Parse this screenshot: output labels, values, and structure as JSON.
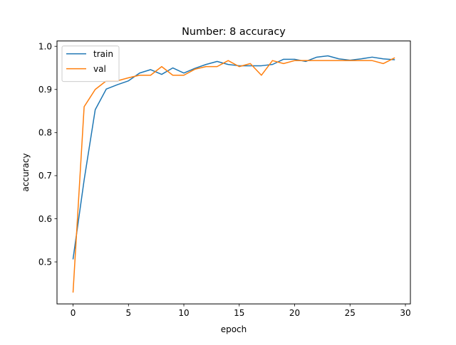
{
  "chart_data": {
    "type": "line",
    "title": "Number: 8 accuracy",
    "xlabel": "epoch",
    "ylabel": "accuracy",
    "xlim": [
      -1.45,
      30.45
    ],
    "ylim": [
      0.4025,
      1.0125
    ],
    "xticks": [
      0,
      5,
      10,
      15,
      20,
      25,
      30
    ],
    "yticks": [
      0.5,
      0.6,
      0.7,
      0.8,
      0.9,
      1.0
    ],
    "xtick_labels": [
      "0",
      "5",
      "10",
      "15",
      "20",
      "25",
      "30"
    ],
    "ytick_labels": [
      "0.5",
      "0.6",
      "0.7",
      "0.8",
      "0.9",
      "1.0"
    ],
    "grid": false,
    "legend_position": "top-left",
    "x": [
      0,
      1,
      2,
      3,
      4,
      5,
      6,
      7,
      8,
      9,
      10,
      11,
      12,
      13,
      14,
      15,
      16,
      17,
      18,
      19,
      20,
      21,
      22,
      23,
      24,
      25,
      26,
      27,
      28,
      29
    ],
    "series": [
      {
        "name": "train",
        "color": "#1f77b4",
        "values": [
          0.507,
          0.69,
          0.853,
          0.901,
          0.911,
          0.92,
          0.938,
          0.946,
          0.935,
          0.95,
          0.938,
          0.949,
          0.958,
          0.965,
          0.958,
          0.955,
          0.955,
          0.955,
          0.958,
          0.97,
          0.97,
          0.965,
          0.975,
          0.978,
          0.971,
          0.968,
          0.971,
          0.975,
          0.971,
          0.969
        ]
      },
      {
        "name": "val",
        "color": "#ff7f0e",
        "values": [
          0.43,
          0.86,
          0.9,
          0.92,
          0.92,
          0.927,
          0.933,
          0.933,
          0.953,
          0.933,
          0.933,
          0.947,
          0.953,
          0.953,
          0.967,
          0.953,
          0.96,
          0.933,
          0.967,
          0.96,
          0.967,
          0.967,
          0.967,
          0.967,
          0.967,
          0.967,
          0.967,
          0.967,
          0.96,
          0.973
        ]
      }
    ]
  }
}
